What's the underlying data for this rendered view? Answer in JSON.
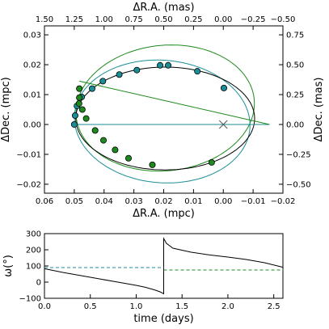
{
  "chart_data": [
    {
      "type": "scatter",
      "xlabel": "ΔR.A. (mpc)",
      "ylabel": "ΔDec. (mpc)",
      "top_xlabel": "ΔR.A. (mas)",
      "right_ylabel": "ΔDec. (mas)",
      "xlim": [
        0.06,
        -0.02
      ],
      "ylim": [
        -0.023,
        0.033
      ],
      "x_ticks": [
        0.06,
        0.05,
        0.04,
        0.03,
        0.02,
        0.01,
        0.0,
        -0.01,
        -0.02
      ],
      "x_tick_labels": [
        "0.06",
        "0.05",
        "0.04",
        "0.03",
        "0.02",
        "0.01",
        "0.00",
        "−0.01",
        "−0.02"
      ],
      "y_ticks": [
        -0.02,
        -0.01,
        0.0,
        0.01,
        0.02,
        0.03
      ],
      "y_tick_labels": [
        "−0.02",
        "−0.01",
        "0.00",
        "0.01",
        "0.02",
        "0.03"
      ],
      "top_ticks": [
        1.5,
        1.25,
        1.0,
        0.75,
        0.5,
        0.25,
        0.0,
        -0.25,
        -0.5
      ],
      "top_tick_labels": [
        "1.50",
        "1.25",
        "1.00",
        "0.75",
        "0.50",
        "0.25",
        "0.00",
        "−0.25",
        "−0.50"
      ],
      "right_ticks": [
        0.75,
        0.5,
        0.25,
        0.0,
        -0.25,
        -0.5
      ],
      "right_tick_labels": [
        "0.75",
        "0.50",
        "0.25",
        "0.00",
        "−0.25",
        "−0.50"
      ],
      "colors": {
        "teal": "#1a8e96",
        "green": "#1d8a1d",
        "orbit": "#000000"
      },
      "teal_points": [
        {
          "x": 0.05,
          "y": 0.0
        },
        {
          "x": 0.0497,
          "y": 0.003
        },
        {
          "x": 0.0491,
          "y": 0.0062
        },
        {
          "x": 0.0475,
          "y": 0.0092
        },
        {
          "x": 0.044,
          "y": 0.012
        },
        {
          "x": 0.0404,
          "y": 0.0145
        },
        {
          "x": 0.0349,
          "y": 0.0167
        },
        {
          "x": 0.029,
          "y": 0.0182
        },
        {
          "x": 0.0212,
          "y": 0.0198
        },
        {
          "x": 0.0185,
          "y": 0.0198
        },
        {
          "x": 0.0087,
          "y": 0.0178
        },
        {
          "x": -0.0002,
          "y": 0.0122
        }
      ],
      "green_points": [
        {
          "x": 0.0483,
          "y": 0.012
        },
        {
          "x": 0.0483,
          "y": 0.009
        },
        {
          "x": 0.0484,
          "y": 0.007
        },
        {
          "x": 0.0473,
          "y": 0.005
        },
        {
          "x": 0.046,
          "y": 0.002
        },
        {
          "x": 0.043,
          "y": -0.002
        },
        {
          "x": 0.0402,
          "y": -0.0053
        },
        {
          "x": 0.0363,
          "y": -0.0085
        },
        {
          "x": 0.0318,
          "y": -0.0113
        },
        {
          "x": 0.0238,
          "y": -0.0135
        },
        {
          "x": 0.0039,
          "y": -0.0127
        }
      ],
      "focus_marker": {
        "x": 0.0,
        "y": 0.0
      }
    },
    {
      "type": "line",
      "xlabel": "time (days)",
      "ylabel": "ω(°)",
      "xlim": [
        0.0,
        2.6
      ],
      "ylim": [
        -100,
        300
      ],
      "x_ticks": [
        0.0,
        0.5,
        1.0,
        1.5,
        2.0,
        2.5
      ],
      "x_tick_labels": [
        "0.0",
        "0.5",
        "1.0",
        "1.5",
        "2.0",
        "2.5"
      ],
      "y_ticks": [
        -100,
        0,
        100,
        200,
        300
      ],
      "y_tick_labels": [
        "−100",
        "0",
        "100",
        "200",
        "300"
      ],
      "series": [
        {
          "values": [
            [
              0.0,
              83
            ],
            [
              0.2,
              60
            ],
            [
              0.4,
              40
            ],
            [
              0.6,
              20
            ],
            [
              0.8,
              0
            ],
            [
              1.0,
              -20
            ],
            [
              1.1,
              -32
            ],
            [
              1.2,
              -48
            ],
            [
              1.26,
              -60
            ],
            [
              1.3,
              -72
            ],
            [
              1.3,
              270
            ],
            [
              1.33,
              240
            ],
            [
              1.4,
              210
            ],
            [
              1.6,
              185
            ],
            [
              1.8,
              168
            ],
            [
              2.0,
              155
            ],
            [
              2.2,
              140
            ],
            [
              2.4,
              120
            ],
            [
              2.6,
              92
            ]
          ]
        },
        {
          "values": [
            [
              0.0,
              90
            ],
            [
              1.3,
              90
            ]
          ],
          "dashed": true,
          "color": "#1a8e96"
        },
        {
          "values": [
            [
              1.3,
              75
            ],
            [
              2.6,
              75
            ]
          ],
          "dashed": true,
          "color": "#1d8a1d"
        }
      ]
    }
  ]
}
